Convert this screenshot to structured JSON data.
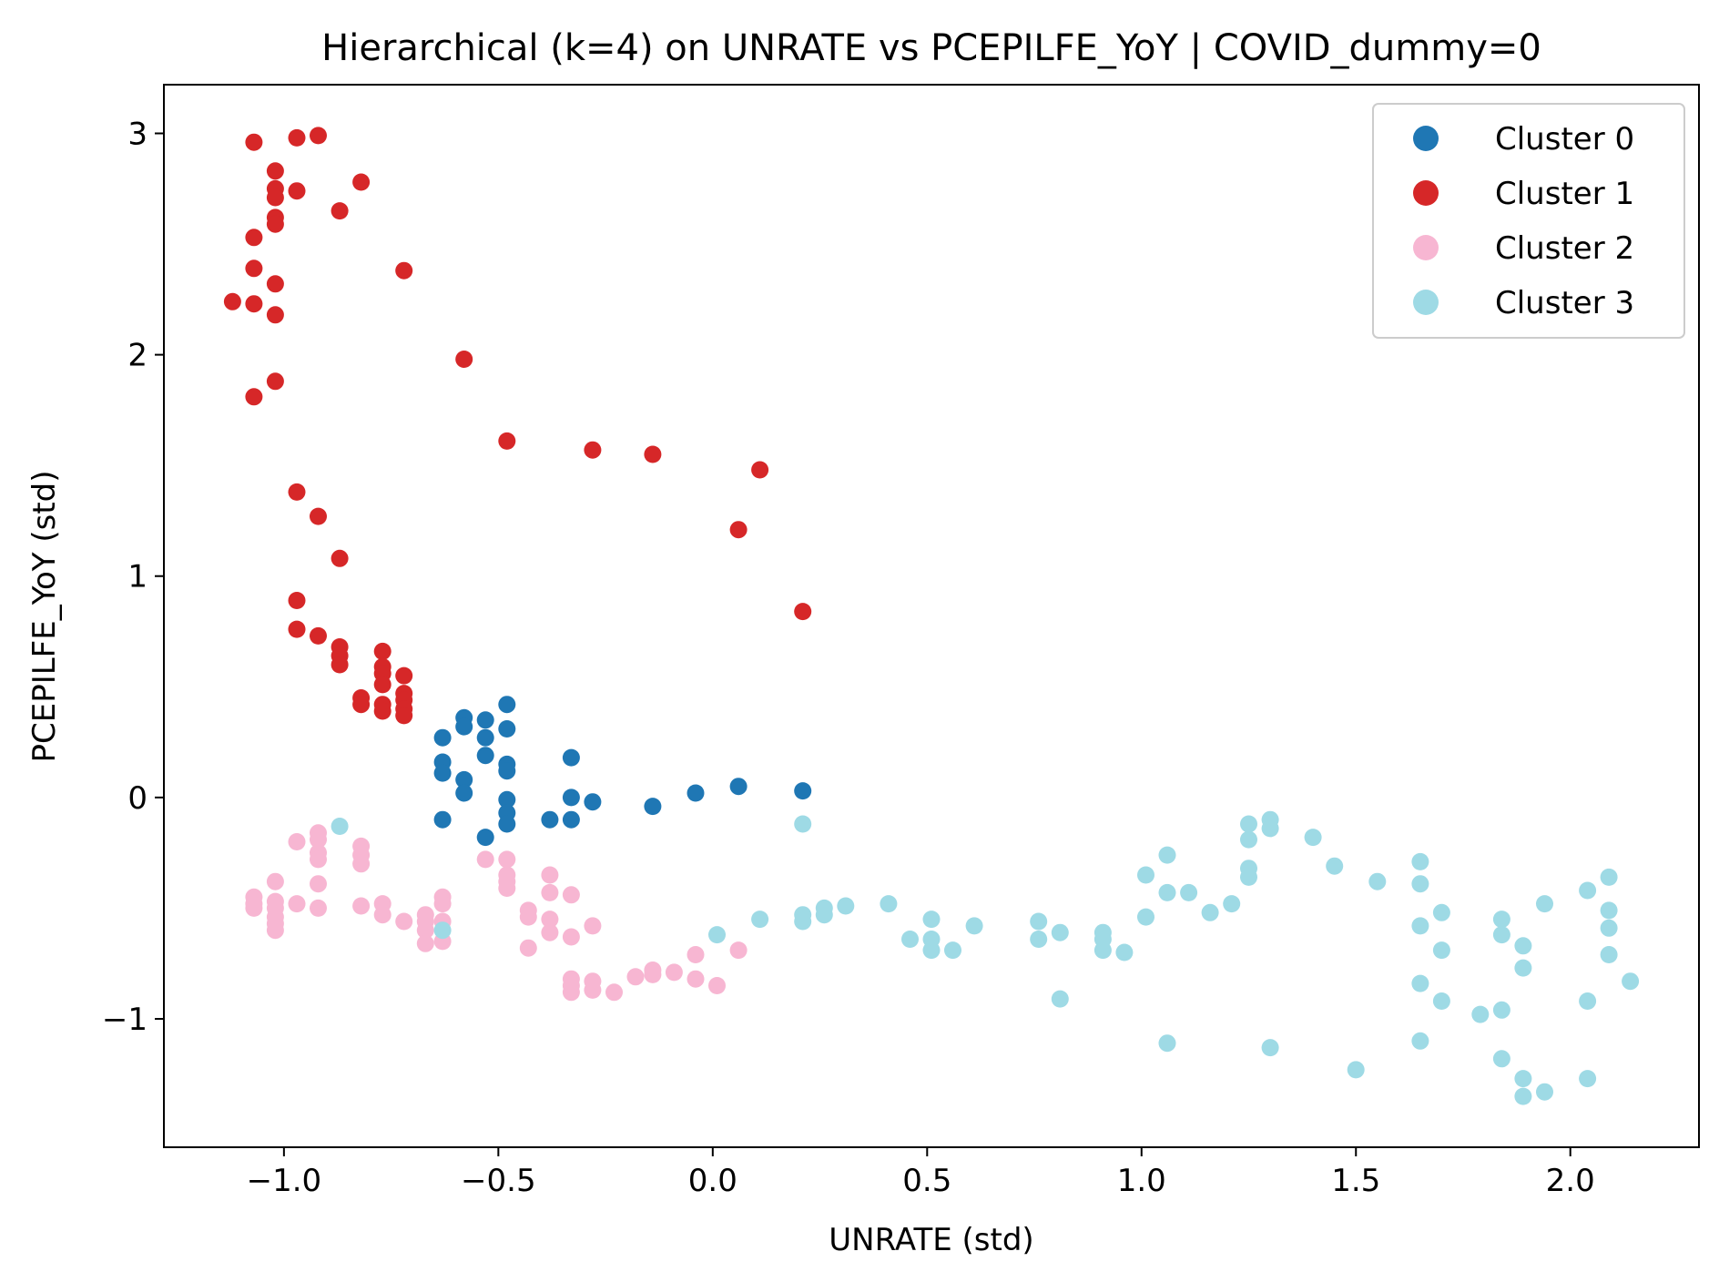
{
  "chart_data": {
    "type": "scatter",
    "title": "Hierarchical (k=4) on UNRATE vs PCEPILFE_YoY | COVID_dummy=0",
    "xlabel": "UNRATE (std)",
    "ylabel": "PCEPILFE_YoY (std)",
    "xlim": [
      -1.28,
      2.3
    ],
    "ylim": [
      -1.58,
      3.22
    ],
    "x_ticks": [
      {
        "value": -1.0,
        "label": "−1.0"
      },
      {
        "value": -0.5,
        "label": "−0.5"
      },
      {
        "value": 0.0,
        "label": "0.0"
      },
      {
        "value": 0.5,
        "label": "0.5"
      },
      {
        "value": 1.0,
        "label": "1.0"
      },
      {
        "value": 1.5,
        "label": "1.5"
      },
      {
        "value": 2.0,
        "label": "2.0"
      }
    ],
    "y_ticks": [
      {
        "value": -1,
        "label": "−1"
      },
      {
        "value": 0,
        "label": "0"
      },
      {
        "value": 1,
        "label": "1"
      },
      {
        "value": 2,
        "label": "2"
      },
      {
        "value": 3,
        "label": "3"
      }
    ],
    "grid": false,
    "legend_position": "top-right",
    "series": [
      {
        "name": "Cluster 0",
        "color": "#1f77b4",
        "points": [
          [
            -0.63,
            0.27
          ],
          [
            -0.63,
            0.16
          ],
          [
            -0.63,
            0.11
          ],
          [
            -0.63,
            -0.1
          ],
          [
            -0.58,
            0.36
          ],
          [
            -0.58,
            0.32
          ],
          [
            -0.58,
            0.08
          ],
          [
            -0.58,
            0.02
          ],
          [
            -0.53,
            0.35
          ],
          [
            -0.53,
            0.27
          ],
          [
            -0.53,
            0.19
          ],
          [
            -0.53,
            -0.18
          ],
          [
            -0.48,
            0.42
          ],
          [
            -0.48,
            0.31
          ],
          [
            -0.48,
            0.15
          ],
          [
            -0.48,
            0.12
          ],
          [
            -0.48,
            -0.01
          ],
          [
            -0.48,
            -0.07
          ],
          [
            -0.48,
            -0.12
          ],
          [
            -0.38,
            -0.1
          ],
          [
            -0.33,
            0.18
          ],
          [
            -0.33,
            0.0
          ],
          [
            -0.33,
            -0.1
          ],
          [
            -0.28,
            -0.02
          ],
          [
            -0.14,
            -0.04
          ],
          [
            -0.04,
            0.02
          ],
          [
            0.06,
            0.05
          ],
          [
            0.21,
            0.03
          ]
        ]
      },
      {
        "name": "Cluster 1",
        "color": "#d62728",
        "points": [
          [
            -1.12,
            2.24
          ],
          [
            -1.07,
            2.96
          ],
          [
            -1.07,
            2.53
          ],
          [
            -1.07,
            2.39
          ],
          [
            -1.07,
            2.23
          ],
          [
            -1.07,
            1.81
          ],
          [
            -1.02,
            2.83
          ],
          [
            -1.02,
            2.75
          ],
          [
            -1.02,
            2.71
          ],
          [
            -1.02,
            2.62
          ],
          [
            -1.02,
            2.59
          ],
          [
            -1.02,
            2.32
          ],
          [
            -1.02,
            2.18
          ],
          [
            -1.02,
            1.88
          ],
          [
            -0.97,
            2.98
          ],
          [
            -0.97,
            2.74
          ],
          [
            -0.97,
            1.38
          ],
          [
            -0.97,
            0.89
          ],
          [
            -0.97,
            0.76
          ],
          [
            -0.92,
            2.99
          ],
          [
            -0.92,
            1.27
          ],
          [
            -0.92,
            0.73
          ],
          [
            -0.87,
            2.65
          ],
          [
            -0.87,
            1.08
          ],
          [
            -0.87,
            0.68
          ],
          [
            -0.87,
            0.64
          ],
          [
            -0.87,
            0.6
          ],
          [
            -0.82,
            2.78
          ],
          [
            -0.82,
            0.45
          ],
          [
            -0.82,
            0.42
          ],
          [
            -0.77,
            0.66
          ],
          [
            -0.77,
            0.59
          ],
          [
            -0.77,
            0.56
          ],
          [
            -0.77,
            0.51
          ],
          [
            -0.77,
            0.42
          ],
          [
            -0.77,
            0.39
          ],
          [
            -0.72,
            2.38
          ],
          [
            -0.72,
            0.55
          ],
          [
            -0.72,
            0.47
          ],
          [
            -0.72,
            0.44
          ],
          [
            -0.72,
            0.4
          ],
          [
            -0.72,
            0.37
          ],
          [
            -0.58,
            1.98
          ],
          [
            -0.48,
            1.61
          ],
          [
            -0.28,
            1.57
          ],
          [
            -0.14,
            1.55
          ],
          [
            0.06,
            1.21
          ],
          [
            0.11,
            1.48
          ],
          [
            0.21,
            0.84
          ]
        ]
      },
      {
        "name": "Cluster 2",
        "color": "#f7b6d2",
        "points": [
          [
            -1.07,
            -0.45
          ],
          [
            -1.07,
            -0.48
          ],
          [
            -1.07,
            -0.5
          ],
          [
            -1.02,
            -0.38
          ],
          [
            -1.02,
            -0.47
          ],
          [
            -1.02,
            -0.5
          ],
          [
            -1.02,
            -0.54
          ],
          [
            -1.02,
            -0.57
          ],
          [
            -1.02,
            -0.6
          ],
          [
            -0.97,
            -0.2
          ],
          [
            -0.97,
            -0.48
          ],
          [
            -0.92,
            -0.16
          ],
          [
            -0.92,
            -0.19
          ],
          [
            -0.92,
            -0.25
          ],
          [
            -0.92,
            -0.28
          ],
          [
            -0.92,
            -0.39
          ],
          [
            -0.92,
            -0.5
          ],
          [
            -0.82,
            -0.22
          ],
          [
            -0.82,
            -0.26
          ],
          [
            -0.82,
            -0.3
          ],
          [
            -0.82,
            -0.49
          ],
          [
            -0.77,
            -0.48
          ],
          [
            -0.77,
            -0.53
          ],
          [
            -0.72,
            -0.56
          ],
          [
            -0.67,
            -0.53
          ],
          [
            -0.67,
            -0.56
          ],
          [
            -0.67,
            -0.6
          ],
          [
            -0.67,
            -0.66
          ],
          [
            -0.63,
            -0.45
          ],
          [
            -0.63,
            -0.48
          ],
          [
            -0.63,
            -0.56
          ],
          [
            -0.63,
            -0.65
          ],
          [
            -0.53,
            -0.28
          ],
          [
            -0.48,
            -0.28
          ],
          [
            -0.48,
            -0.35
          ],
          [
            -0.48,
            -0.38
          ],
          [
            -0.48,
            -0.41
          ],
          [
            -0.43,
            -0.51
          ],
          [
            -0.43,
            -0.54
          ],
          [
            -0.43,
            -0.68
          ],
          [
            -0.38,
            -0.35
          ],
          [
            -0.38,
            -0.43
          ],
          [
            -0.38,
            -0.55
          ],
          [
            -0.38,
            -0.61
          ],
          [
            -0.33,
            -0.44
          ],
          [
            -0.33,
            -0.63
          ],
          [
            -0.33,
            -0.82
          ],
          [
            -0.33,
            -0.85
          ],
          [
            -0.33,
            -0.88
          ],
          [
            -0.28,
            -0.58
          ],
          [
            -0.28,
            -0.83
          ],
          [
            -0.28,
            -0.87
          ],
          [
            -0.23,
            -0.88
          ],
          [
            -0.18,
            -0.81
          ],
          [
            -0.14,
            -0.78
          ],
          [
            -0.14,
            -0.8
          ],
          [
            -0.09,
            -0.79
          ],
          [
            -0.04,
            -0.71
          ],
          [
            -0.04,
            -0.82
          ],
          [
            0.01,
            -0.85
          ],
          [
            0.06,
            -0.69
          ]
        ]
      },
      {
        "name": "Cluster 3",
        "color": "#9edae5",
        "points": [
          [
            -0.87,
            -0.13
          ],
          [
            -0.63,
            -0.6
          ],
          [
            0.01,
            -0.62
          ],
          [
            0.11,
            -0.55
          ],
          [
            0.21,
            -0.12
          ],
          [
            0.21,
            -0.53
          ],
          [
            0.21,
            -0.56
          ],
          [
            0.26,
            -0.5
          ],
          [
            0.26,
            -0.53
          ],
          [
            0.31,
            -0.49
          ],
          [
            0.41,
            -0.48
          ],
          [
            0.46,
            -0.64
          ],
          [
            0.51,
            -0.55
          ],
          [
            0.51,
            -0.64
          ],
          [
            0.51,
            -0.69
          ],
          [
            0.56,
            -0.69
          ],
          [
            0.61,
            -0.58
          ],
          [
            0.76,
            -0.56
          ],
          [
            0.76,
            -0.64
          ],
          [
            0.81,
            -0.61
          ],
          [
            0.81,
            -0.91
          ],
          [
            0.91,
            -0.61
          ],
          [
            0.91,
            -0.64
          ],
          [
            0.91,
            -0.69
          ],
          [
            0.96,
            -0.7
          ],
          [
            1.01,
            -0.35
          ],
          [
            1.01,
            -0.54
          ],
          [
            1.06,
            -0.26
          ],
          [
            1.06,
            -0.43
          ],
          [
            1.06,
            -1.11
          ],
          [
            1.11,
            -0.43
          ],
          [
            1.16,
            -0.52
          ],
          [
            1.21,
            -0.48
          ],
          [
            1.25,
            -0.12
          ],
          [
            1.25,
            -0.19
          ],
          [
            1.25,
            -0.32
          ],
          [
            1.25,
            -0.36
          ],
          [
            1.3,
            -0.1
          ],
          [
            1.3,
            -0.14
          ],
          [
            1.3,
            -1.13
          ],
          [
            1.4,
            -0.18
          ],
          [
            1.45,
            -0.31
          ],
          [
            1.5,
            -1.23
          ],
          [
            1.55,
            -0.38
          ],
          [
            1.65,
            -0.29
          ],
          [
            1.65,
            -0.39
          ],
          [
            1.65,
            -0.58
          ],
          [
            1.65,
            -0.84
          ],
          [
            1.65,
            -1.1
          ],
          [
            1.7,
            -0.52
          ],
          [
            1.7,
            -0.69
          ],
          [
            1.7,
            -0.92
          ],
          [
            1.79,
            -0.98
          ],
          [
            1.84,
            -0.55
          ],
          [
            1.84,
            -0.62
          ],
          [
            1.84,
            -0.96
          ],
          [
            1.84,
            -1.18
          ],
          [
            1.89,
            -0.67
          ],
          [
            1.89,
            -0.77
          ],
          [
            1.89,
            -1.27
          ],
          [
            1.89,
            -1.35
          ],
          [
            1.94,
            -0.48
          ],
          [
            1.94,
            -1.33
          ],
          [
            2.04,
            -0.42
          ],
          [
            2.04,
            -0.92
          ],
          [
            2.04,
            -1.27
          ],
          [
            2.09,
            -0.36
          ],
          [
            2.09,
            -0.51
          ],
          [
            2.09,
            -0.59
          ],
          [
            2.09,
            -0.71
          ],
          [
            2.14,
            -0.83
          ]
        ]
      }
    ]
  }
}
